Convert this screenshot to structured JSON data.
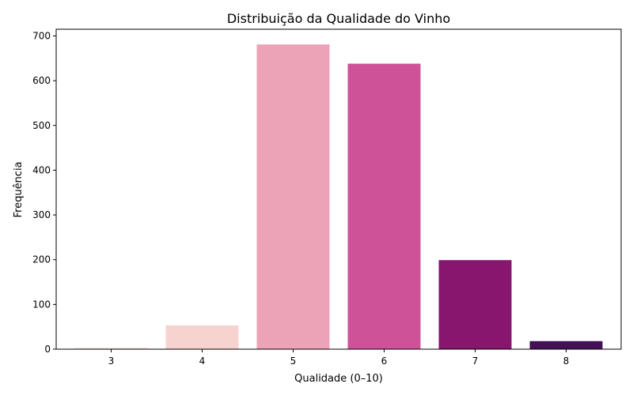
{
  "chart_data": {
    "type": "bar",
    "title": "Distribuição da Qualidade do Vinho",
    "xlabel": "Qualidade (0–10)",
    "ylabel": "Frequência",
    "categories": [
      "3",
      "4",
      "5",
      "6",
      "7",
      "8"
    ],
    "values": [
      3,
      53,
      681,
      638,
      199,
      18
    ],
    "colors": [
      "#fbe3d6",
      "#f7d3d0",
      "#eca3b7",
      "#ce5298",
      "#87166e",
      "#451057"
    ],
    "ylim": [
      0,
      715
    ],
    "yticks": [
      0,
      100,
      200,
      300,
      400,
      500,
      600,
      700
    ],
    "grid": false,
    "legend": "none"
  }
}
